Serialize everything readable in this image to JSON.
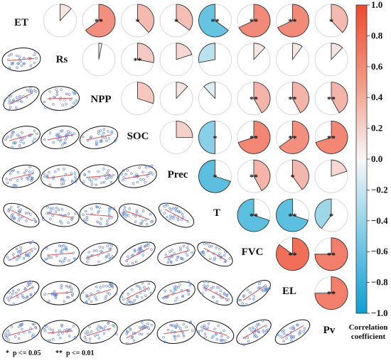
{
  "chart_data": {
    "type": "correlogram",
    "variables": [
      "ET",
      "Rs",
      "NPP",
      "SOC",
      "Prec",
      "T",
      "FVC",
      "EL",
      "Pv"
    ],
    "upper_pies": [
      {
        "row": 0,
        "col": 1,
        "r": 0.12,
        "sig": ""
      },
      {
        "row": 0,
        "col": 2,
        "r": 0.65,
        "sig": "**"
      },
      {
        "row": 0,
        "col": 3,
        "r": 0.38,
        "sig": "*"
      },
      {
        "row": 0,
        "col": 4,
        "r": 0.35,
        "sig": "*"
      },
      {
        "row": 0,
        "col": 5,
        "r": -0.65,
        "sig": "**"
      },
      {
        "row": 0,
        "col": 6,
        "r": 0.68,
        "sig": "**"
      },
      {
        "row": 0,
        "col": 7,
        "r": 0.68,
        "sig": "**"
      },
      {
        "row": 0,
        "col": 8,
        "r": 0.38,
        "sig": "*"
      },
      {
        "row": 1,
        "col": 2,
        "r": 0.03,
        "sig": ""
      },
      {
        "row": 1,
        "col": 3,
        "r": 0.28,
        "sig": "**"
      },
      {
        "row": 1,
        "col": 4,
        "r": 0.2,
        "sig": ""
      },
      {
        "row": 1,
        "col": 5,
        "r": -0.28,
        "sig": ""
      },
      {
        "row": 1,
        "col": 6,
        "r": 0.12,
        "sig": ""
      },
      {
        "row": 1,
        "col": 7,
        "r": 0.1,
        "sig": ""
      },
      {
        "row": 1,
        "col": 8,
        "r": 0.12,
        "sig": ""
      },
      {
        "row": 2,
        "col": 3,
        "r": 0.3,
        "sig": ""
      },
      {
        "row": 2,
        "col": 4,
        "r": 0.12,
        "sig": ""
      },
      {
        "row": 2,
        "col": 5,
        "r": -0.12,
        "sig": ""
      },
      {
        "row": 2,
        "col": 6,
        "r": 0.42,
        "sig": "**"
      },
      {
        "row": 2,
        "col": 7,
        "r": 0.42,
        "sig": "**"
      },
      {
        "row": 2,
        "col": 8,
        "r": 0.42,
        "sig": "**"
      },
      {
        "row": 3,
        "col": 4,
        "r": 0.25,
        "sig": ""
      },
      {
        "row": 3,
        "col": 5,
        "r": -0.5,
        "sig": "*"
      },
      {
        "row": 3,
        "col": 6,
        "r": 0.7,
        "sig": "**"
      },
      {
        "row": 3,
        "col": 7,
        "r": 0.65,
        "sig": "**"
      },
      {
        "row": 3,
        "col": 8,
        "r": 0.7,
        "sig": "**"
      },
      {
        "row": 4,
        "col": 5,
        "r": -0.7,
        "sig": "*"
      },
      {
        "row": 4,
        "col": 6,
        "r": 0.42,
        "sig": "**"
      },
      {
        "row": 4,
        "col": 7,
        "r": 0.4,
        "sig": "*"
      },
      {
        "row": 4,
        "col": 8,
        "r": 0.2,
        "sig": ""
      },
      {
        "row": 5,
        "col": 6,
        "r": -0.7,
        "sig": "**"
      },
      {
        "row": 5,
        "col": 7,
        "r": -0.7,
        "sig": "**"
      },
      {
        "row": 5,
        "col": 8,
        "r": -0.4,
        "sig": "*"
      },
      {
        "row": 6,
        "col": 7,
        "r": 0.85,
        "sig": "**"
      },
      {
        "row": 6,
        "col": 8,
        "r": 0.75,
        "sig": "**"
      },
      {
        "row": 7,
        "col": 8,
        "r": 0.75,
        "sig": "**"
      }
    ],
    "colorbar": {
      "title_line1": "Correlation",
      "title_line2": "coefficient",
      "ticks": [
        "1.0",
        "0.8",
        "0.6",
        "0.4",
        "0.2",
        "0.0",
        "−0.2",
        "−0.4",
        "−0.6",
        "−0.8",
        "−1.0"
      ],
      "range": [
        -1,
        1
      ],
      "color_positive": "#f0573d",
      "color_zero": "#f7f7f7",
      "color_negative": "#1aa7d6"
    },
    "significance_legend": [
      "*  p <= 0.05",
      "**  p <= 0.01"
    ],
    "scatter_color": "#5a7fd1",
    "fit_line_color": "#d9534f",
    "ellipse_color": "#111111"
  }
}
